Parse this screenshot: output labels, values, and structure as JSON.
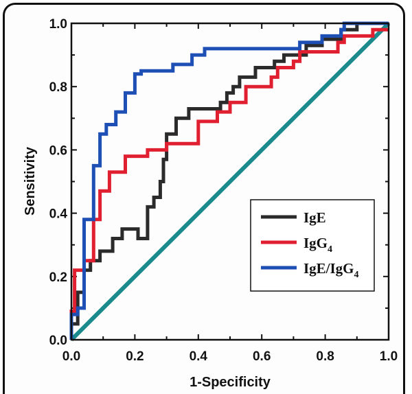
{
  "chart_data": {
    "type": "line",
    "title": "",
    "xlabel": "1-Specificity",
    "ylabel": "Sensitivity",
    "xlim": [
      0,
      1
    ],
    "ylim": [
      0,
      1
    ],
    "xticks": [
      "0.0",
      "0.2",
      "0.4",
      "0.6",
      "0.8",
      "1.0"
    ],
    "yticks": [
      "0.0",
      "0.2",
      "0.4",
      "0.6",
      "0.8",
      "1.0"
    ],
    "legend_position": "bottom-right",
    "legend": [
      {
        "label": "IgE",
        "color": "#2b2b2b"
      },
      {
        "label": "IgG",
        "sub": "4",
        "color": "#e02030"
      },
      {
        "label": "IgE/IgG",
        "sub": "4",
        "color": "#1e4fb4"
      }
    ],
    "series": [
      {
        "name": "IgE",
        "color": "#2b2b2b",
        "points": [
          [
            0,
            0
          ],
          [
            0,
            0.05
          ],
          [
            0.02,
            0.05
          ],
          [
            0.02,
            0.15
          ],
          [
            0.04,
            0.15
          ],
          [
            0.04,
            0.22
          ],
          [
            0.06,
            0.22
          ],
          [
            0.06,
            0.25
          ],
          [
            0.09,
            0.25
          ],
          [
            0.09,
            0.28
          ],
          [
            0.13,
            0.28
          ],
          [
            0.13,
            0.32
          ],
          [
            0.16,
            0.32
          ],
          [
            0.16,
            0.35
          ],
          [
            0.21,
            0.35
          ],
          [
            0.21,
            0.32
          ],
          [
            0.24,
            0.32
          ],
          [
            0.24,
            0.42
          ],
          [
            0.26,
            0.42
          ],
          [
            0.26,
            0.45
          ],
          [
            0.28,
            0.45
          ],
          [
            0.28,
            0.5
          ],
          [
            0.29,
            0.5
          ],
          [
            0.29,
            0.57
          ],
          [
            0.3,
            0.57
          ],
          [
            0.3,
            0.65
          ],
          [
            0.33,
            0.65
          ],
          [
            0.33,
            0.7
          ],
          [
            0.37,
            0.7
          ],
          [
            0.37,
            0.73
          ],
          [
            0.47,
            0.73
          ],
          [
            0.47,
            0.75
          ],
          [
            0.49,
            0.75
          ],
          [
            0.49,
            0.78
          ],
          [
            0.51,
            0.78
          ],
          [
            0.51,
            0.8
          ],
          [
            0.53,
            0.8
          ],
          [
            0.53,
            0.83
          ],
          [
            0.58,
            0.83
          ],
          [
            0.58,
            0.86
          ],
          [
            0.64,
            0.86
          ],
          [
            0.64,
            0.88
          ],
          [
            0.67,
            0.88
          ],
          [
            0.67,
            0.9
          ],
          [
            0.74,
            0.9
          ],
          [
            0.74,
            0.93
          ],
          [
            0.79,
            0.93
          ],
          [
            0.79,
            0.95
          ],
          [
            0.85,
            0.95
          ],
          [
            0.85,
            0.98
          ],
          [
            0.9,
            0.98
          ],
          [
            0.9,
            1.0
          ],
          [
            1.0,
            1.0
          ]
        ]
      },
      {
        "name": "IgG4",
        "color": "#e02030",
        "points": [
          [
            0,
            0
          ],
          [
            0,
            0.09
          ],
          [
            0.01,
            0.09
          ],
          [
            0.01,
            0.22
          ],
          [
            0.04,
            0.22
          ],
          [
            0.04,
            0.25
          ],
          [
            0.07,
            0.25
          ],
          [
            0.07,
            0.38
          ],
          [
            0.09,
            0.38
          ],
          [
            0.09,
            0.47
          ],
          [
            0.12,
            0.47
          ],
          [
            0.12,
            0.53
          ],
          [
            0.17,
            0.53
          ],
          [
            0.17,
            0.58
          ],
          [
            0.24,
            0.58
          ],
          [
            0.24,
            0.6
          ],
          [
            0.3,
            0.6
          ],
          [
            0.3,
            0.62
          ],
          [
            0.4,
            0.62
          ],
          [
            0.4,
            0.69
          ],
          [
            0.46,
            0.69
          ],
          [
            0.46,
            0.72
          ],
          [
            0.5,
            0.72
          ],
          [
            0.5,
            0.75
          ],
          [
            0.55,
            0.75
          ],
          [
            0.55,
            0.8
          ],
          [
            0.63,
            0.8
          ],
          [
            0.63,
            0.83
          ],
          [
            0.65,
            0.83
          ],
          [
            0.65,
            0.86
          ],
          [
            0.7,
            0.86
          ],
          [
            0.7,
            0.88
          ],
          [
            0.72,
            0.88
          ],
          [
            0.72,
            0.91
          ],
          [
            0.84,
            0.91
          ],
          [
            0.84,
            0.94
          ],
          [
            0.86,
            0.94
          ],
          [
            0.86,
            0.96
          ],
          [
            0.95,
            0.96
          ],
          [
            0.95,
            0.98
          ],
          [
            1.0,
            0.98
          ]
        ]
      },
      {
        "name": "IgE/IgG4",
        "color": "#1e4fb4",
        "points": [
          [
            0,
            0
          ],
          [
            0,
            0.08
          ],
          [
            0.02,
            0.08
          ],
          [
            0.02,
            0.1
          ],
          [
            0.04,
            0.1
          ],
          [
            0.04,
            0.38
          ],
          [
            0.07,
            0.38
          ],
          [
            0.07,
            0.55
          ],
          [
            0.09,
            0.55
          ],
          [
            0.09,
            0.65
          ],
          [
            0.11,
            0.65
          ],
          [
            0.11,
            0.68
          ],
          [
            0.14,
            0.68
          ],
          [
            0.14,
            0.72
          ],
          [
            0.17,
            0.72
          ],
          [
            0.17,
            0.78
          ],
          [
            0.2,
            0.78
          ],
          [
            0.2,
            0.84
          ],
          [
            0.22,
            0.84
          ],
          [
            0.22,
            0.85
          ],
          [
            0.32,
            0.85
          ],
          [
            0.32,
            0.87
          ],
          [
            0.38,
            0.87
          ],
          [
            0.38,
            0.9
          ],
          [
            0.42,
            0.9
          ],
          [
            0.42,
            0.92
          ],
          [
            0.72,
            0.92
          ],
          [
            0.72,
            0.94
          ],
          [
            0.79,
            0.94
          ],
          [
            0.79,
            0.96
          ],
          [
            0.85,
            0.96
          ],
          [
            0.85,
            0.98
          ],
          [
            0.86,
            0.98
          ],
          [
            0.86,
            1.0
          ],
          [
            1.0,
            1.0
          ]
        ]
      },
      {
        "name": "",
        "color": "#1a8a8c",
        "points": [
          [
            0,
            0
          ],
          [
            1,
            1
          ]
        ]
      }
    ]
  }
}
